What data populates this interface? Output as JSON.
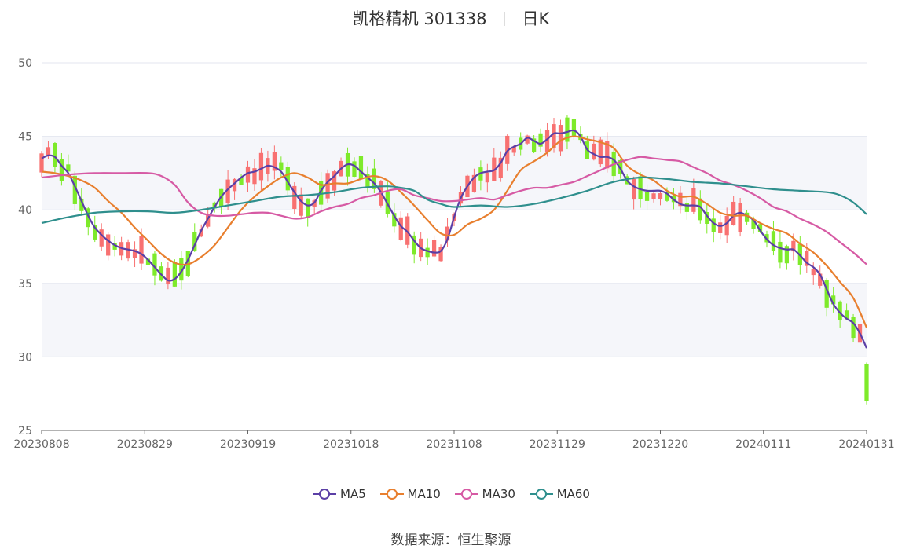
{
  "header": {
    "name": "凯格精机 301338",
    "period": "日K"
  },
  "source_label": "数据来源：恒生聚源",
  "chart_data": {
    "type": "candlestick",
    "title": "凯格精机 301338",
    "ylim": [
      25,
      50
    ],
    "yticks": [
      25,
      30,
      35,
      40,
      45,
      50
    ],
    "xticks": [
      "20230808",
      "20230829",
      "20230919",
      "20231018",
      "20231108",
      "20231129",
      "20231220",
      "20240111",
      "20240131"
    ],
    "up_color": "#f87171",
    "down_color": "#7eea2a",
    "series": [
      {
        "name": "MA5",
        "color": "#5b3fa6",
        "points": [
          [
            0,
            43.5
          ],
          [
            1,
            43.7
          ],
          [
            2,
            43.6
          ],
          [
            3,
            43.0
          ],
          [
            4,
            42.5
          ],
          [
            5,
            41.6
          ],
          [
            6,
            40.6
          ],
          [
            7,
            39.6
          ],
          [
            8,
            38.8
          ],
          [
            9,
            38.3
          ],
          [
            10,
            37.9
          ],
          [
            11,
            37.6
          ],
          [
            12,
            37.4
          ],
          [
            13,
            37.3
          ],
          [
            14,
            37.2
          ],
          [
            15,
            37.0
          ],
          [
            16,
            36.6
          ],
          [
            17,
            36.1
          ],
          [
            18,
            35.6
          ],
          [
            19,
            35.2
          ],
          [
            20,
            35.3
          ],
          [
            21,
            35.8
          ],
          [
            22,
            36.6
          ],
          [
            23,
            37.6
          ],
          [
            24,
            38.6
          ],
          [
            25,
            39.4
          ],
          [
            26,
            40.2
          ],
          [
            27,
            40.9
          ],
          [
            28,
            41.4
          ],
          [
            29,
            41.8
          ],
          [
            30,
            42.2
          ],
          [
            31,
            42.5
          ],
          [
            32,
            42.6
          ],
          [
            33,
            42.8
          ],
          [
            34,
            43.0
          ],
          [
            35,
            42.9
          ],
          [
            36,
            42.6
          ],
          [
            37,
            41.9
          ],
          [
            38,
            41.2
          ],
          [
            39,
            40.6
          ],
          [
            40,
            40.3
          ],
          [
            41,
            40.5
          ],
          [
            42,
            41.3
          ],
          [
            43,
            41.9
          ],
          [
            44,
            42.3
          ],
          [
            45,
            42.8
          ],
          [
            46,
            43.1
          ],
          [
            47,
            43.0
          ],
          [
            48,
            42.6
          ],
          [
            49,
            42.2
          ],
          [
            50,
            41.8
          ],
          [
            51,
            41.2
          ],
          [
            52,
            40.4
          ],
          [
            53,
            39.6
          ],
          [
            54,
            38.9
          ],
          [
            55,
            38.5
          ],
          [
            56,
            37.9
          ],
          [
            57,
            37.4
          ],
          [
            58,
            37.2
          ],
          [
            59,
            37.1
          ],
          [
            60,
            37.2
          ],
          [
            61,
            38.0
          ],
          [
            62,
            39.5
          ],
          [
            63,
            40.8
          ],
          [
            64,
            41.6
          ],
          [
            65,
            42.2
          ],
          [
            66,
            42.5
          ],
          [
            67,
            42.6
          ],
          [
            68,
            42.7
          ],
          [
            69,
            43.2
          ],
          [
            70,
            44.0
          ],
          [
            71,
            44.3
          ],
          [
            72,
            44.5
          ],
          [
            73,
            44.9
          ],
          [
            74,
            44.7
          ],
          [
            75,
            44.5
          ],
          [
            76,
            44.8
          ],
          [
            77,
            45.2
          ],
          [
            78,
            45.2
          ],
          [
            79,
            45.3
          ],
          [
            80,
            45.4
          ],
          [
            81,
            45.0
          ],
          [
            82,
            44.1
          ],
          [
            83,
            43.8
          ],
          [
            84,
            43.6
          ],
          [
            85,
            43.6
          ],
          [
            86,
            43.4
          ],
          [
            87,
            42.8
          ],
          [
            88,
            42.0
          ],
          [
            89,
            41.6
          ],
          [
            90,
            41.4
          ],
          [
            91,
            41.3
          ],
          [
            92,
            41.3
          ],
          [
            93,
            41.3
          ],
          [
            94,
            41.1
          ],
          [
            95,
            40.7
          ],
          [
            96,
            40.4
          ],
          [
            97,
            40.3
          ],
          [
            98,
            40.3
          ],
          [
            99,
            40.2
          ],
          [
            100,
            39.6
          ],
          [
            101,
            39.1
          ],
          [
            102,
            38.9
          ],
          [
            103,
            39.1
          ],
          [
            104,
            39.6
          ],
          [
            105,
            39.8
          ],
          [
            106,
            39.6
          ],
          [
            107,
            39.3
          ],
          [
            108,
            38.6
          ],
          [
            109,
            38.0
          ],
          [
            110,
            37.6
          ],
          [
            111,
            37.4
          ],
          [
            112,
            37.3
          ],
          [
            113,
            37.3
          ],
          [
            114,
            36.9
          ],
          [
            115,
            36.4
          ],
          [
            116,
            36.1
          ],
          [
            117,
            35.6
          ],
          [
            118,
            34.6
          ],
          [
            119,
            33.6
          ],
          [
            120,
            33.0
          ],
          [
            121,
            32.6
          ],
          [
            122,
            32.3
          ],
          [
            123,
            31.6
          ],
          [
            124,
            30.6
          ]
        ]
      },
      {
        "name": "MA10",
        "color": "#e87f2e",
        "points": [
          [
            0,
            42.6
          ],
          [
            2,
            42.5
          ],
          [
            4,
            42.3
          ],
          [
            6,
            42.0
          ],
          [
            8,
            41.5
          ],
          [
            10,
            40.6
          ],
          [
            12,
            39.8
          ],
          [
            14,
            38.8
          ],
          [
            16,
            37.9
          ],
          [
            18,
            37.0
          ],
          [
            20,
            36.4
          ],
          [
            22,
            36.3
          ],
          [
            24,
            36.8
          ],
          [
            26,
            37.6
          ],
          [
            28,
            38.8
          ],
          [
            30,
            40.0
          ],
          [
            32,
            40.9
          ],
          [
            34,
            41.6
          ],
          [
            36,
            42.2
          ],
          [
            38,
            42.5
          ],
          [
            40,
            42.2
          ],
          [
            42,
            41.7
          ],
          [
            44,
            41.8
          ],
          [
            46,
            41.8
          ],
          [
            48,
            42.1
          ],
          [
            50,
            42.3
          ],
          [
            52,
            42.0
          ],
          [
            54,
            41.2
          ],
          [
            56,
            40.3
          ],
          [
            58,
            39.3
          ],
          [
            60,
            38.4
          ],
          [
            62,
            38.3
          ],
          [
            64,
            39.0
          ],
          [
            66,
            39.4
          ],
          [
            68,
            40.0
          ],
          [
            70,
            41.3
          ],
          [
            72,
            42.7
          ],
          [
            74,
            43.3
          ],
          [
            76,
            43.9
          ],
          [
            78,
            44.7
          ],
          [
            80,
            45.0
          ],
          [
            82,
            44.8
          ],
          [
            84,
            44.6
          ],
          [
            86,
            44.2
          ],
          [
            88,
            43.0
          ],
          [
            90,
            42.4
          ],
          [
            92,
            42.0
          ],
          [
            94,
            41.3
          ],
          [
            96,
            40.9
          ],
          [
            98,
            40.9
          ],
          [
            100,
            40.4
          ],
          [
            102,
            39.8
          ],
          [
            104,
            39.6
          ],
          [
            106,
            39.6
          ],
          [
            108,
            39.1
          ],
          [
            110,
            38.7
          ],
          [
            112,
            38.4
          ],
          [
            114,
            37.7
          ],
          [
            116,
            37.1
          ],
          [
            118,
            36.2
          ],
          [
            120,
            35.1
          ],
          [
            122,
            34.0
          ],
          [
            124,
            32.0
          ]
        ]
      },
      {
        "name": "MA30",
        "color": "#d65aa4",
        "points": [
          [
            0,
            42.2
          ],
          [
            4,
            42.4
          ],
          [
            8,
            42.5
          ],
          [
            12,
            42.5
          ],
          [
            16,
            42.5
          ],
          [
            18,
            42.3
          ],
          [
            20,
            41.7
          ],
          [
            22,
            40.5
          ],
          [
            24,
            39.8
          ],
          [
            26,
            39.6
          ],
          [
            28,
            39.6
          ],
          [
            30,
            39.7
          ],
          [
            32,
            39.8
          ],
          [
            34,
            39.8
          ],
          [
            36,
            39.6
          ],
          [
            38,
            39.4
          ],
          [
            40,
            39.5
          ],
          [
            42,
            39.9
          ],
          [
            44,
            40.2
          ],
          [
            46,
            40.4
          ],
          [
            48,
            40.8
          ],
          [
            50,
            41.0
          ],
          [
            52,
            41.3
          ],
          [
            54,
            41.4
          ],
          [
            56,
            41.0
          ],
          [
            58,
            40.8
          ],
          [
            60,
            40.6
          ],
          [
            62,
            40.6
          ],
          [
            64,
            40.7
          ],
          [
            66,
            40.8
          ],
          [
            68,
            40.7
          ],
          [
            70,
            41.0
          ],
          [
            72,
            41.3
          ],
          [
            74,
            41.5
          ],
          [
            76,
            41.5
          ],
          [
            78,
            41.7
          ],
          [
            80,
            41.9
          ],
          [
            82,
            42.3
          ],
          [
            84,
            42.7
          ],
          [
            86,
            43.1
          ],
          [
            88,
            43.4
          ],
          [
            90,
            43.6
          ],
          [
            92,
            43.5
          ],
          [
            94,
            43.4
          ],
          [
            96,
            43.3
          ],
          [
            98,
            42.9
          ],
          [
            100,
            42.5
          ],
          [
            102,
            42.0
          ],
          [
            104,
            41.7
          ],
          [
            106,
            41.3
          ],
          [
            108,
            40.8
          ],
          [
            110,
            40.2
          ],
          [
            112,
            39.9
          ],
          [
            114,
            39.4
          ],
          [
            116,
            39.0
          ],
          [
            118,
            38.5
          ],
          [
            120,
            37.8
          ],
          [
            122,
            37.1
          ],
          [
            124,
            36.3
          ]
        ]
      },
      {
        "name": "MA60",
        "color": "#2f8f8d",
        "points": [
          [
            0,
            39.1
          ],
          [
            4,
            39.5
          ],
          [
            8,
            39.8
          ],
          [
            12,
            39.9
          ],
          [
            16,
            39.9
          ],
          [
            20,
            39.8
          ],
          [
            24,
            40.0
          ],
          [
            28,
            40.3
          ],
          [
            32,
            40.6
          ],
          [
            36,
            40.9
          ],
          [
            40,
            41.0
          ],
          [
            44,
            41.2
          ],
          [
            48,
            41.5
          ],
          [
            52,
            41.6
          ],
          [
            54,
            41.5
          ],
          [
            56,
            41.3
          ],
          [
            58,
            40.7
          ],
          [
            60,
            40.4
          ],
          [
            62,
            40.2
          ],
          [
            66,
            40.3
          ],
          [
            70,
            40.2
          ],
          [
            74,
            40.4
          ],
          [
            78,
            40.8
          ],
          [
            82,
            41.3
          ],
          [
            86,
            41.9
          ],
          [
            90,
            42.2
          ],
          [
            94,
            42.1
          ],
          [
            98,
            41.9
          ],
          [
            102,
            41.8
          ],
          [
            106,
            41.6
          ],
          [
            110,
            41.4
          ],
          [
            114,
            41.3
          ],
          [
            118,
            41.2
          ],
          [
            120,
            41.0
          ],
          [
            122,
            40.5
          ],
          [
            124,
            39.7
          ]
        ]
      }
    ]
  },
  "legend": {
    "items": [
      "MA5",
      "MA10",
      "MA30",
      "MA60"
    ]
  }
}
